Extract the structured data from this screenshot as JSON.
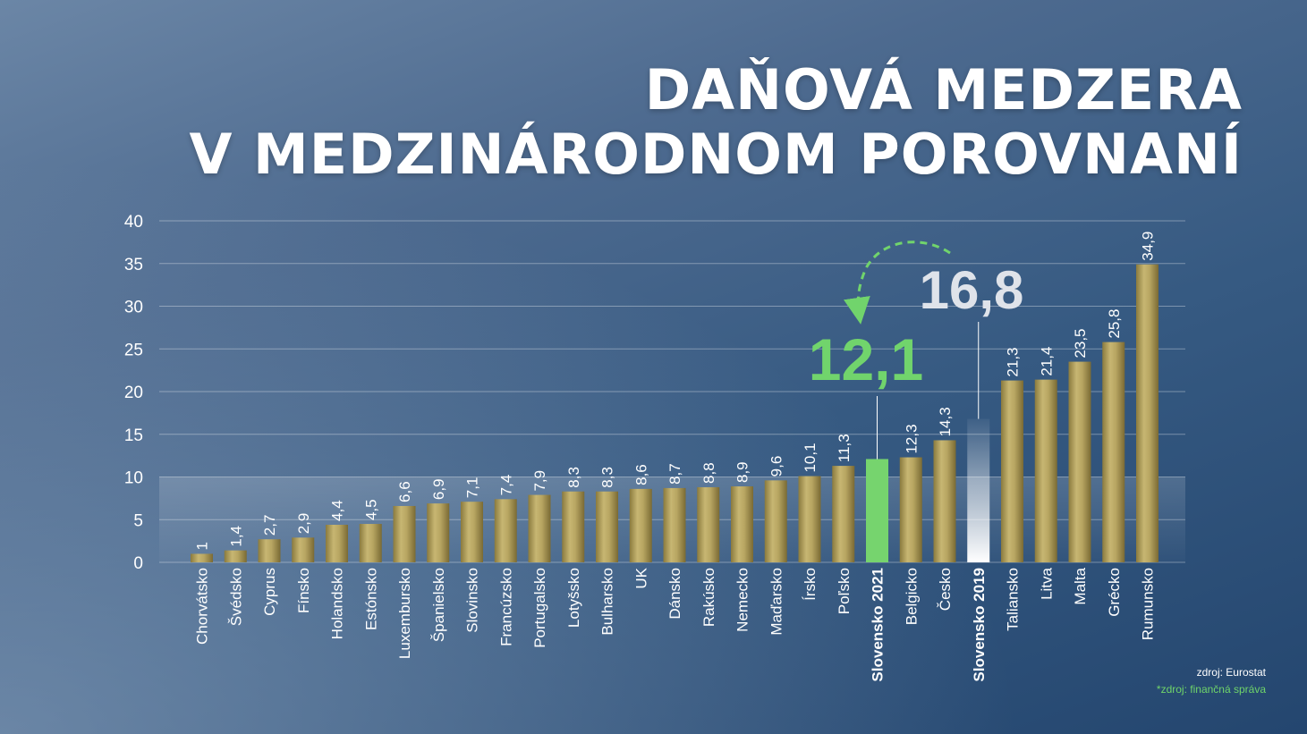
{
  "title_line1": "DAŇOVÁ MEDZERA",
  "title_line2": "V MEDZINÁRODNOM POROVNANÍ",
  "source_eurostat": "zdroj: Eurostat",
  "source_financna": "*zdroj: finančná správa",
  "colors": {
    "bar_gold": "#b0a05a",
    "highlight_green": "#76d46e",
    "slovensko_2019_white": "#ffffff",
    "callout_green": "#71d46c",
    "callout_gray": "#dfe3ea",
    "text_white": "#ffffff"
  },
  "chart_data": {
    "type": "bar",
    "title": "DAŇOVÁ MEDZERA V MEDZINÁRODNOM POROVNANÍ",
    "xlabel": "",
    "ylabel": "",
    "ylim": [
      0,
      40
    ],
    "yticks": [
      0,
      5,
      10,
      15,
      20,
      25,
      30,
      35,
      40
    ],
    "grid": true,
    "categories": [
      "Chorvátsko",
      "Švédsko",
      "Cyprus",
      "Fínsko",
      "Holandsko",
      "Estónsko",
      "Luxembursko",
      "Španielsko",
      "Slovinsko",
      "Francúzsko",
      "Portugalsko",
      "Lotyšsko",
      "Bulharsko",
      "UK",
      "Dánsko",
      "Rakúsko",
      "Nemecko",
      "Maďarsko",
      "Írsko",
      "Poľsko",
      "Slovensko 2021",
      "Belgicko",
      "Česko",
      "Slovensko 2019",
      "Taliansko",
      "Litva",
      "Malta",
      "Grécko",
      "Rumunsko"
    ],
    "values": [
      1,
      1.4,
      2.7,
      2.9,
      4.4,
      4.5,
      6.6,
      6.9,
      7.1,
      7.4,
      7.9,
      8.3,
      8.3,
      8.6,
      8.7,
      8.8,
      8.9,
      9.6,
      10.1,
      11.3,
      12.1,
      12.3,
      14.3,
      16.8,
      21.3,
      21.4,
      23.5,
      25.8,
      34.9
    ],
    "value_labels": [
      "1",
      "1,4",
      "2,7",
      "2,9",
      "4,4",
      "4,5",
      "6,6",
      "6,9",
      "7,1",
      "7,4",
      "7,9",
      "8,3",
      "8,3",
      "8,6",
      "8,7",
      "8,8",
      "8,9",
      "9,6",
      "10,1",
      "11,3",
      "",
      "12,3",
      "14,3",
      "",
      "21,3",
      "21,4",
      "23,5",
      "25,8",
      "34,9"
    ],
    "highlights": {
      "Slovensko 2021": {
        "style": "green",
        "callout": "12,1"
      },
      "Slovensko 2019": {
        "style": "white-gradient",
        "callout": "16,8"
      }
    }
  }
}
